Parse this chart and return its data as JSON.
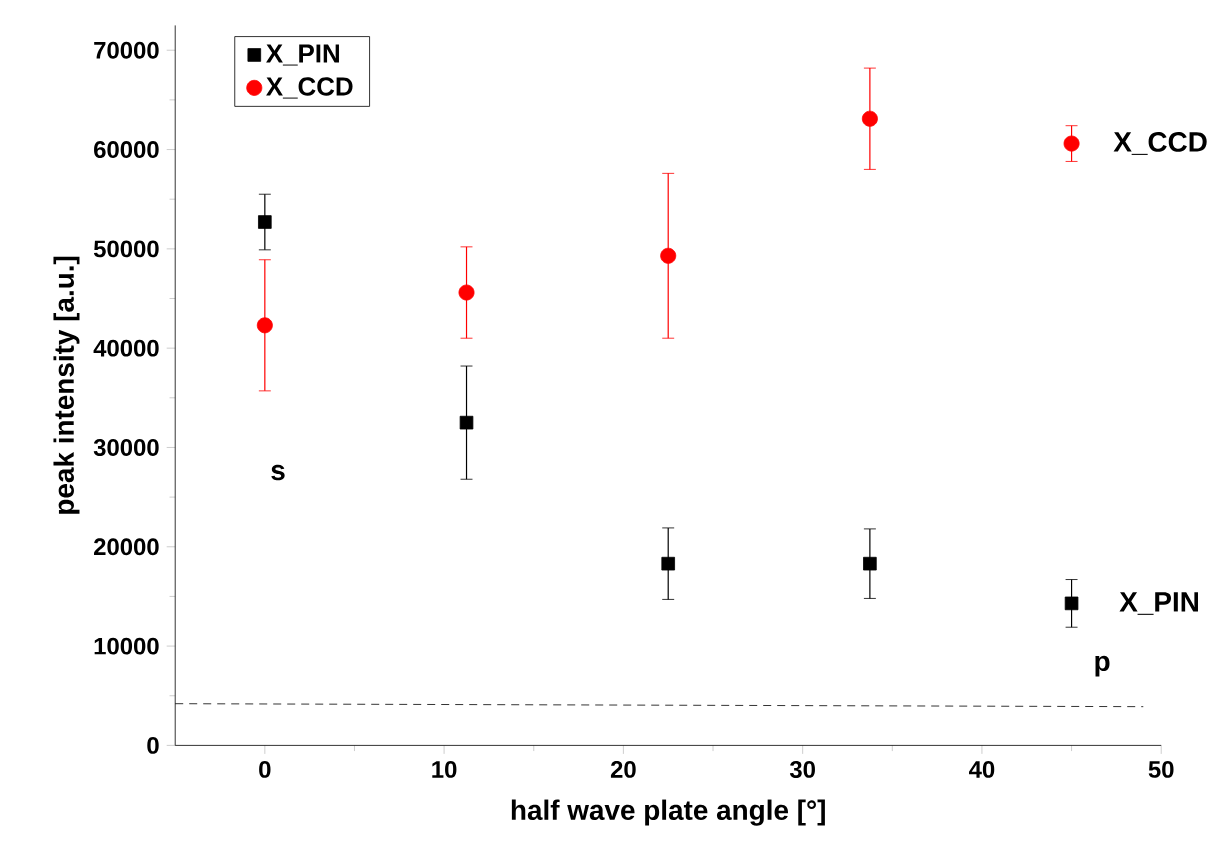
{
  "chart_data": {
    "type": "scatter",
    "xlabel": "half wave plate angle [°]",
    "ylabel": "peak intensity [a.u.]",
    "xlim": [
      -5,
      50
    ],
    "ylim": [
      0,
      72500
    ],
    "xticks": [
      0,
      10,
      20,
      30,
      40,
      50
    ],
    "yticks": [
      0,
      10000,
      20000,
      30000,
      40000,
      50000,
      60000,
      70000
    ],
    "grid": false,
    "legend": "top left",
    "series": [
      {
        "name": "X_PIN",
        "color": "#000000",
        "marker": "square",
        "x": [
          0,
          11.25,
          22.5,
          33.75,
          45
        ],
        "values": [
          52700,
          32500,
          18300,
          18300,
          14300
        ],
        "errors": [
          2800,
          5700,
          3600,
          3500,
          2400
        ]
      },
      {
        "name": "X_CCD",
        "color": "#ff0000",
        "marker": "circle",
        "x": [
          0,
          11.25,
          22.5,
          33.75,
          45
        ],
        "values": [
          42300,
          45600,
          49300,
          63100,
          60600
        ],
        "errors": [
          6600,
          4600,
          8300,
          5100,
          1800
        ]
      },
      {
        "type": "line",
        "color": "#000000",
        "line_style": "dashed",
        "marker": "none",
        "x": [
          -5,
          49
        ],
        "values": [
          4200,
          3900
        ]
      }
    ],
    "annotations": [
      "s",
      "X_CCD",
      "X_PIN",
      "p"
    ]
  }
}
